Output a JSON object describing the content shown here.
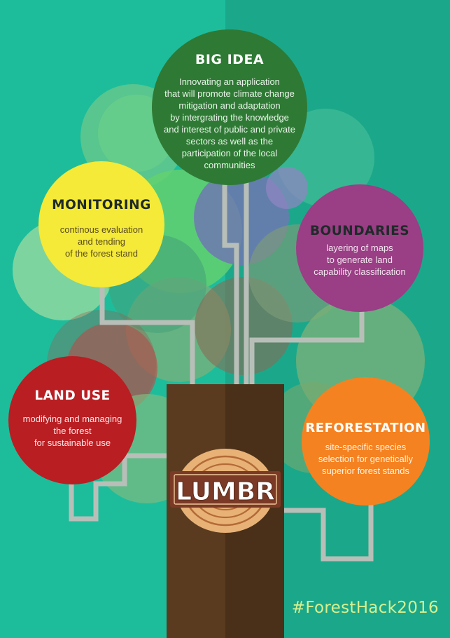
{
  "colors": {
    "background_left": "#1dbd9c",
    "background_right": "#1ba88a",
    "trunk": "#5a3b20",
    "connector": "#b8bfb8",
    "big_idea": "#2e7a34",
    "monitoring": "#f4ea37",
    "boundaries": "#9a3e85",
    "land_use": "#b91e22",
    "reforestation": "#f58220",
    "hashtag": "#d7ef8e"
  },
  "nodes": {
    "big_idea": {
      "title": "BIG IDEA",
      "body": "Innovating an application\nthat will promote climate change\nmitigation and adaptation\nby intergrating the knowledge\nand interest of public and private\nsectors as well as the\nparticipation of the local\ncommunities"
    },
    "monitoring": {
      "title": "MONITORING",
      "body": "continous evaluation\nand tending\nof the forest stand"
    },
    "boundaries": {
      "title": "BOUNDARIES",
      "body": "layering of maps\nto generate land\ncapability classification"
    },
    "land_use": {
      "title": "LAND USE",
      "body": "modifying and managing\nthe forest\nfor sustainable use"
    },
    "reforestation": {
      "title": "REFORESTATION",
      "body": "site-specific species\nselection for genetically\nsuperior forest stands"
    }
  },
  "logo": {
    "text": "LUMBR",
    "icon": "tree-ring-log-icon"
  },
  "hashtag": "#ForestHack2016"
}
